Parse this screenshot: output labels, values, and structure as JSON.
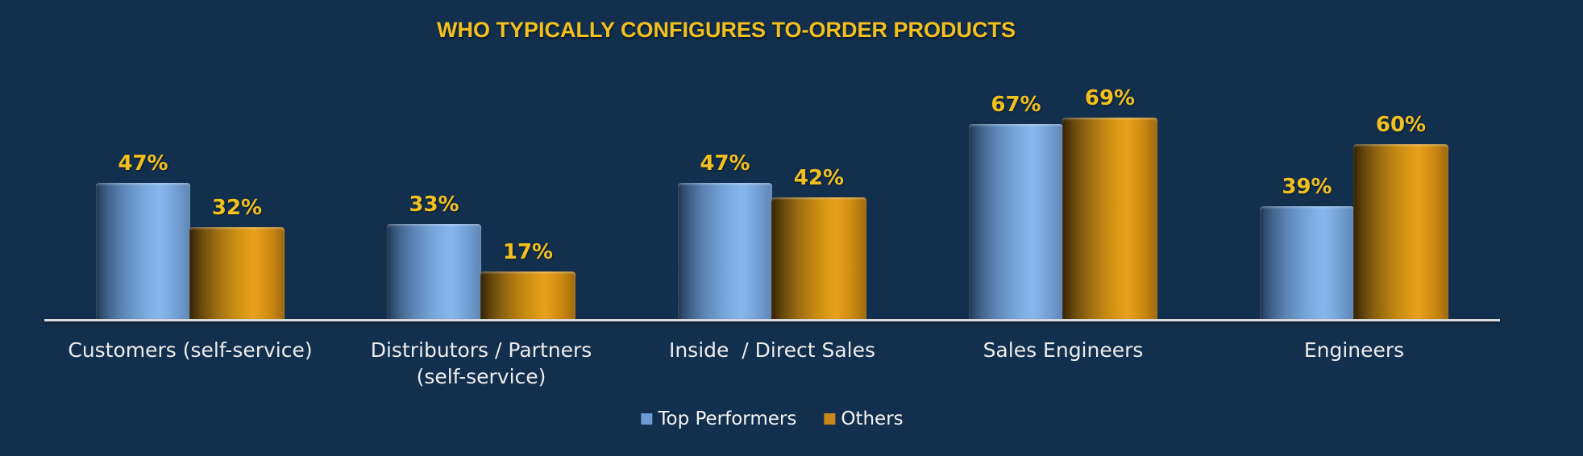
{
  "title": "WHO TYPICALLY CONFIGURES TO-ORDER PRODUCTS",
  "colors": {
    "background": "#122F4D",
    "title_gold": "#F2C01E",
    "value_label_gold": "#F2C01E",
    "category_text": "#EDEDED",
    "axis_line": "#D9D9D9",
    "top_performers_blue": "#6D9BD3",
    "others_orange": "#C8871B"
  },
  "chart_data": {
    "type": "bar",
    "title": "WHO TYPICALLY CONFIGURES TO-ORDER PRODUCTS",
    "categories": [
      "Customers (self-service)",
      "Distributors / Partners\n(self-service)",
      "Inside  / Direct Sales",
      "Sales Engineers",
      "Engineers"
    ],
    "series": [
      {
        "name": "Top Performers",
        "key": "blue",
        "swatch_color": "#6D9BD3",
        "values": [
          47,
          33,
          47,
          67,
          39
        ]
      },
      {
        "name": "Others",
        "key": "orange",
        "swatch_color": "#C8871B",
        "values": [
          32,
          17,
          42,
          69,
          60
        ]
      }
    ],
    "value_suffix": "%",
    "xlabel": "",
    "ylabel": "",
    "ylim": [
      0,
      100
    ],
    "grid": false,
    "y_axis_visible": false,
    "legend_position": "bottom",
    "data_labels_visible": true
  }
}
